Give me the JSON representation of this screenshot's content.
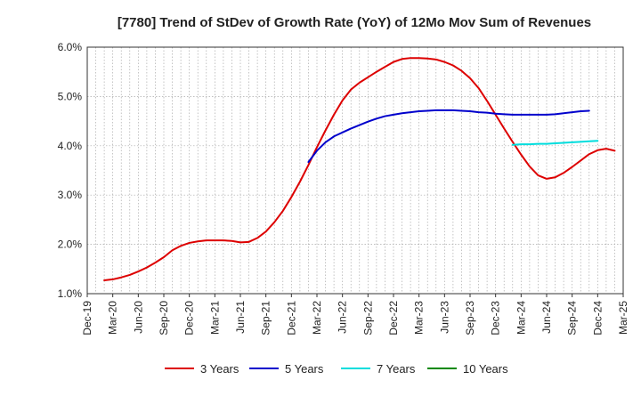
{
  "chart_data": {
    "type": "line",
    "title": "[7780]  Trend of StDev of Growth Rate (YoY) of 12Mo Mov Sum of Revenues",
    "xlabel": "",
    "ylabel": "",
    "ylim": [
      1.0,
      6.0
    ],
    "y_ticks": [
      "1.0%",
      "2.0%",
      "3.0%",
      "4.0%",
      "5.0%",
      "6.0%"
    ],
    "y_tick_values": [
      1.0,
      2.0,
      3.0,
      4.0,
      5.0,
      6.0
    ],
    "x_ticks": [
      "Dec-19",
      "Mar-20",
      "Jun-20",
      "Sep-20",
      "Dec-20",
      "Mar-21",
      "Jun-21",
      "Sep-21",
      "Dec-21",
      "Mar-22",
      "Jun-22",
      "Sep-22",
      "Dec-22",
      "Mar-23",
      "Jun-23",
      "Sep-23",
      "Dec-23",
      "Mar-24",
      "Jun-24",
      "Sep-24",
      "Dec-24",
      "Mar-25"
    ],
    "x_start": "Dec-19",
    "x_end": "Mar-25",
    "grid": true,
    "legend_position": "bottom",
    "series": [
      {
        "name": "3 Years",
        "color": "#dd0000",
        "start": "Feb-20",
        "values": [
          1.27,
          1.29,
          1.33,
          1.38,
          1.45,
          1.53,
          1.63,
          1.74,
          1.88,
          1.97,
          2.03,
          2.06,
          2.08,
          2.08,
          2.08,
          2.07,
          2.04,
          2.05,
          2.13,
          2.26,
          2.45,
          2.68,
          2.96,
          3.27,
          3.61,
          3.97,
          4.31,
          4.63,
          4.92,
          5.14,
          5.28,
          5.39,
          5.5,
          5.6,
          5.7,
          5.76,
          5.78,
          5.78,
          5.77,
          5.75,
          5.7,
          5.63,
          5.52,
          5.37,
          5.17,
          4.91,
          4.63,
          4.35,
          4.08,
          3.82,
          3.58,
          3.4,
          3.33,
          3.36,
          3.45,
          3.57,
          3.7,
          3.83,
          3.91,
          3.94,
          3.9
        ]
      },
      {
        "name": "5 Years",
        "color": "#0000cc",
        "start": "Feb-22",
        "values": [
          3.67,
          3.9,
          4.07,
          4.19,
          4.27,
          4.35,
          4.42,
          4.49,
          4.55,
          4.6,
          4.63,
          4.66,
          4.68,
          4.7,
          4.71,
          4.72,
          4.72,
          4.72,
          4.71,
          4.7,
          4.68,
          4.67,
          4.65,
          4.64,
          4.63,
          4.63,
          4.63,
          4.63,
          4.63,
          4.64,
          4.66,
          4.68,
          4.7,
          4.71
        ]
      },
      {
        "name": "7 Years",
        "color": "#00dddd",
        "start": "Feb-24",
        "values": [
          4.02,
          4.03,
          4.03,
          4.04,
          4.04,
          4.05,
          4.06,
          4.07,
          4.08,
          4.09,
          4.1
        ]
      },
      {
        "name": "10 Years",
        "color": "#008800",
        "start": "Feb-24",
        "values": []
      }
    ]
  }
}
